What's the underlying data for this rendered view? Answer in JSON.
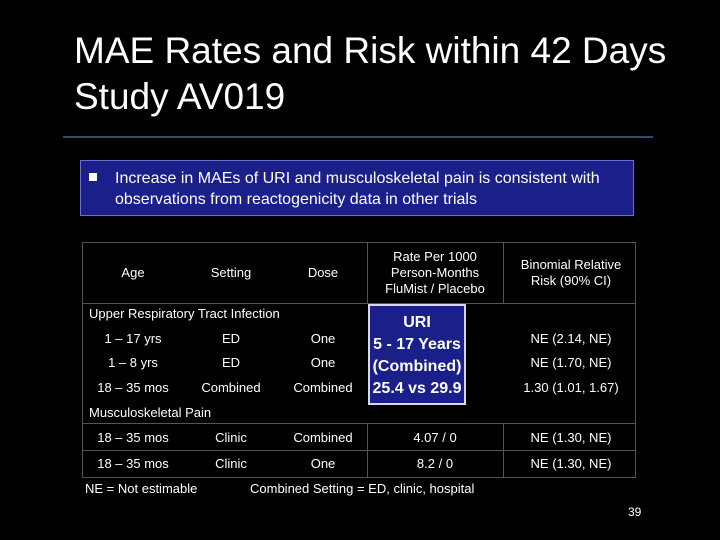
{
  "slide": {
    "title": "MAE Rates and Risk within 42 Days Study AV019",
    "bullet": "Increase in MAEs of URI and musculoskeletal pain is consistent with observations from reactogenicity data in other trials",
    "page_number": "39"
  },
  "table": {
    "headers": {
      "age": "Age",
      "setting": "Setting",
      "dose": "Dose",
      "rate": "Rate Per 1000 Person-Months FluMist / Placebo",
      "risk": "Binomial Relative Risk (90% CI)"
    },
    "uri_section": "Upper Respiratory Tract Infection",
    "uri_rows": [
      {
        "age": "1 – 17 yrs",
        "setting": "ED",
        "dose": "One",
        "risk": "NE (2.14, NE)"
      },
      {
        "age": "1 – 8 yrs",
        "setting": "ED",
        "dose": "One",
        "risk": "NE (1.70, NE)"
      },
      {
        "age": "18 – 35 mos",
        "setting": "Combined",
        "dose": "Combined",
        "risk": "1.30 (1.01, 1.67)"
      }
    ],
    "callout": {
      "line1": "URI",
      "line2": "5 - 17 Years",
      "line3": "(Combined)",
      "line4": "25.4 vs 29.9"
    },
    "msk_section": "Musculoskeletal Pain",
    "msk_rows": [
      {
        "age": "18 – 35 mos",
        "setting": "Clinic",
        "dose": "Combined",
        "rate": "4.07 / 0",
        "risk": "NE (1.30, NE)"
      },
      {
        "age": "18 – 35 mos",
        "setting": "Clinic",
        "dose": "One",
        "rate": "8.2 / 0",
        "risk": "NE (1.30, NE)"
      }
    ]
  },
  "footnotes": {
    "ne": "NE = Not estimable",
    "setting": "Combined Setting = ED, clinic, hospital"
  }
}
